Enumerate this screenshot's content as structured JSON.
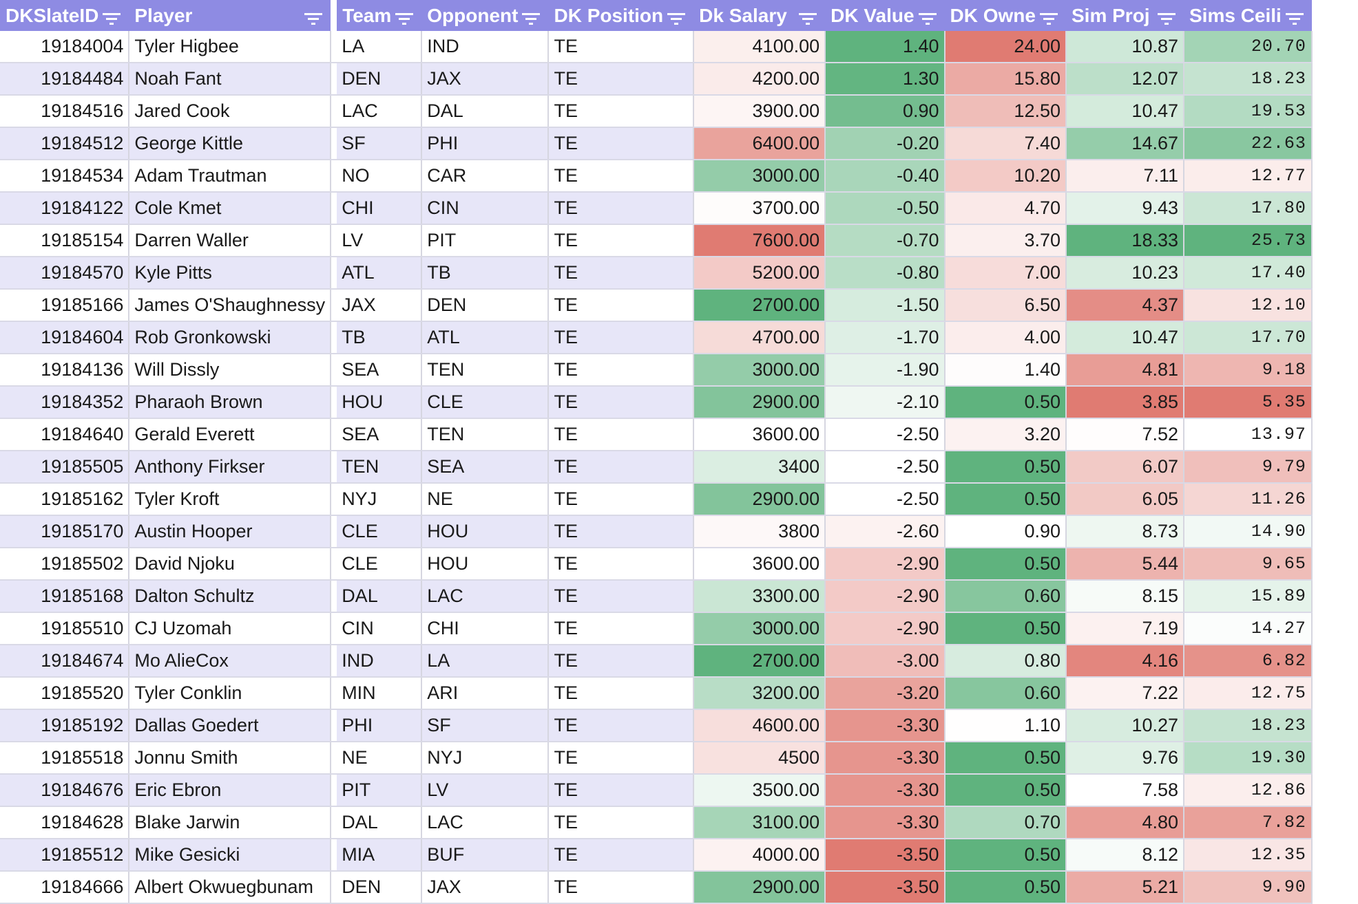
{
  "header": {
    "columns": [
      "DKSlateID",
      "Player",
      "Team",
      "Opponent",
      "DK Position",
      "Dk Salary",
      "DK Value",
      "DK Owne",
      "Sim Proj",
      "Sims Ceili"
    ]
  },
  "rows": [
    [
      "19184004",
      "Tyler Higbee",
      "LA",
      "IND",
      "TE",
      "4100.00",
      "1.40",
      "24.00",
      "10.87",
      "20.70"
    ],
    [
      "19184484",
      "Noah Fant",
      "DEN",
      "JAX",
      "TE",
      "4200.00",
      "1.30",
      "15.80",
      "12.07",
      "18.23"
    ],
    [
      "19184516",
      "Jared Cook",
      "LAC",
      "DAL",
      "TE",
      "3900.00",
      "0.90",
      "12.50",
      "10.47",
      "19.53"
    ],
    [
      "19184512",
      "George Kittle",
      "SF",
      "PHI",
      "TE",
      "6400.00",
      "-0.20",
      "7.40",
      "14.67",
      "22.63"
    ],
    [
      "19184534",
      "Adam Trautman",
      "NO",
      "CAR",
      "TE",
      "3000.00",
      "-0.40",
      "10.20",
      "7.11",
      "12.77"
    ],
    [
      "19184122",
      "Cole Kmet",
      "CHI",
      "CIN",
      "TE",
      "3700.00",
      "-0.50",
      "4.70",
      "9.43",
      "17.80"
    ],
    [
      "19185154",
      "Darren Waller",
      "LV",
      "PIT",
      "TE",
      "7600.00",
      "-0.70",
      "3.70",
      "18.33",
      "25.73"
    ],
    [
      "19184570",
      "Kyle Pitts",
      "ATL",
      "TB",
      "TE",
      "5200.00",
      "-0.80",
      "7.00",
      "10.23",
      "17.40"
    ],
    [
      "19185166",
      "James O'Shaughnessy",
      "JAX",
      "DEN",
      "TE",
      "2700.00",
      "-1.50",
      "6.50",
      "4.37",
      "12.10"
    ],
    [
      "19184604",
      "Rob Gronkowski",
      "TB",
      "ATL",
      "TE",
      "4700.00",
      "-1.70",
      "4.00",
      "10.47",
      "17.70"
    ],
    [
      "19184136",
      "Will Dissly",
      "SEA",
      "TEN",
      "TE",
      "3000.00",
      "-1.90",
      "1.40",
      "4.81",
      "9.18"
    ],
    [
      "19184352",
      "Pharaoh Brown",
      "HOU",
      "CLE",
      "TE",
      "2900.00",
      "-2.10",
      "0.50",
      "3.85",
      "5.35"
    ],
    [
      "19184640",
      "Gerald Everett",
      "SEA",
      "TEN",
      "TE",
      "3600.00",
      "-2.50",
      "3.20",
      "7.52",
      "13.97"
    ],
    [
      "19185505",
      "Anthony Firkser",
      "TEN",
      "SEA",
      "TE",
      "3400",
      "-2.50",
      "0.50",
      "6.07",
      "9.79"
    ],
    [
      "19185162",
      "Tyler Kroft",
      "NYJ",
      "NE",
      "TE",
      "2900.00",
      "-2.50",
      "0.50",
      "6.05",
      "11.26"
    ],
    [
      "19185170",
      "Austin Hooper",
      "CLE",
      "HOU",
      "TE",
      "3800",
      "-2.60",
      "0.90",
      "8.73",
      "14.90"
    ],
    [
      "19185502",
      "David Njoku",
      "CLE",
      "HOU",
      "TE",
      "3600.00",
      "-2.90",
      "0.50",
      "5.44",
      "9.65"
    ],
    [
      "19185168",
      "Dalton Schultz",
      "DAL",
      "LAC",
      "TE",
      "3300.00",
      "-2.90",
      "0.60",
      "8.15",
      "15.89"
    ],
    [
      "19185510",
      "CJ Uzomah",
      "CIN",
      "CHI",
      "TE",
      "3000.00",
      "-2.90",
      "0.50",
      "7.19",
      "14.27"
    ],
    [
      "19184674",
      "Mo AlieCox",
      "IND",
      "LA",
      "TE",
      "2700.00",
      "-3.00",
      "0.80",
      "4.16",
      "6.82"
    ],
    [
      "19185520",
      "Tyler Conklin",
      "MIN",
      "ARI",
      "TE",
      "3200.00",
      "-3.20",
      "0.60",
      "7.22",
      "12.75"
    ],
    [
      "19185192",
      "Dallas Goedert",
      "PHI",
      "SF",
      "TE",
      "4600.00",
      "-3.30",
      "1.10",
      "10.27",
      "18.23"
    ],
    [
      "19185518",
      "Jonnu Smith",
      "NE",
      "NYJ",
      "TE",
      "4500",
      "-3.30",
      "0.50",
      "9.76",
      "19.30"
    ],
    [
      "19184676",
      "Eric Ebron",
      "PIT",
      "LV",
      "TE",
      "3500.00",
      "-3.30",
      "0.50",
      "7.58",
      "12.86"
    ],
    [
      "19184628",
      "Blake Jarwin",
      "DAL",
      "LAC",
      "TE",
      "3100.00",
      "-3.30",
      "0.70",
      "4.80",
      "7.82"
    ],
    [
      "19185512",
      "Mike Gesicki",
      "MIA",
      "BUF",
      "TE",
      "4000.00",
      "-3.50",
      "0.50",
      "8.12",
      "12.35"
    ],
    [
      "19184666",
      "Albert Okwuegbunam",
      "DEN",
      "JAX",
      "TE",
      "2900.00",
      "-3.50",
      "0.50",
      "5.21",
      "9.90"
    ]
  ],
  "heatmap": {
    "high_color": "#e07b72",
    "mid_color": "#ffffff",
    "low_color": "#5fb37e",
    "row_alt_color": "#e7e6f8",
    "header_color": "#8e8be3",
    "columns": {
      "5": {
        "lowIsGreen": true
      },
      "6": {
        "lowIsGreen": false
      },
      "7": {
        "lowIsGreen": true
      },
      "8": {
        "lowIsGreen": false
      },
      "9": {
        "lowIsGreen": false
      }
    }
  },
  "icons": {
    "filter": "filter-icon"
  }
}
